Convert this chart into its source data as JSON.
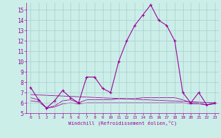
{
  "xlabel": "Windchill (Refroidissement éolien,°C)",
  "background_color": "#cceee8",
  "grid_color": "#aacccc",
  "line_color": "#990099",
  "xlim": [
    -0.5,
    23.5
  ],
  "ylim": [
    5,
    15.7
  ],
  "xticks": [
    0,
    1,
    2,
    3,
    4,
    5,
    6,
    7,
    8,
    9,
    10,
    11,
    12,
    13,
    14,
    15,
    16,
    17,
    18,
    19,
    20,
    21,
    22,
    23
  ],
  "yticks": [
    5,
    6,
    7,
    8,
    9,
    10,
    11,
    12,
    13,
    14,
    15
  ],
  "main_series_x": [
    0,
    1,
    2,
    3,
    4,
    5,
    6,
    7,
    8,
    9,
    10,
    11,
    12,
    13,
    14,
    15,
    16,
    17,
    18,
    19,
    20,
    21,
    22,
    23
  ],
  "main_series_y": [
    7.5,
    6.3,
    5.5,
    6.2,
    7.2,
    6.5,
    6.0,
    8.5,
    8.5,
    7.4,
    7.0,
    10.0,
    12.0,
    13.5,
    14.5,
    15.5,
    14.0,
    13.5,
    12.0,
    7.0,
    6.0,
    7.0,
    5.8,
    6.0
  ],
  "flat_line1_x": [
    0,
    1,
    2,
    3,
    4,
    5,
    6,
    7,
    8,
    9,
    10,
    11,
    12,
    13,
    14,
    15,
    16,
    17,
    18,
    19,
    20,
    21,
    22,
    23
  ],
  "flat_line1_y": [
    6.5,
    6.3,
    5.5,
    5.7,
    6.2,
    6.3,
    6.0,
    6.3,
    6.3,
    6.3,
    6.3,
    6.4,
    6.4,
    6.4,
    6.5,
    6.5,
    6.5,
    6.5,
    6.5,
    6.3,
    6.0,
    6.0,
    5.8,
    6.0
  ],
  "flat_line2_x": [
    0,
    1,
    2,
    3,
    4,
    5,
    6,
    7,
    8,
    9,
    10,
    11,
    12,
    13,
    14,
    15,
    16,
    17,
    18,
    19,
    20,
    21,
    22,
    23
  ],
  "flat_line2_y": [
    6.2,
    6.1,
    5.5,
    5.6,
    5.9,
    6.0,
    5.9,
    6.0,
    6.0,
    6.0,
    6.0,
    6.0,
    6.0,
    6.0,
    6.0,
    6.0,
    6.0,
    6.0,
    6.0,
    6.0,
    5.9,
    5.9,
    5.8,
    5.9
  ],
  "trend_line_x": [
    0,
    23
  ],
  "trend_line_y": [
    6.8,
    6.0
  ]
}
